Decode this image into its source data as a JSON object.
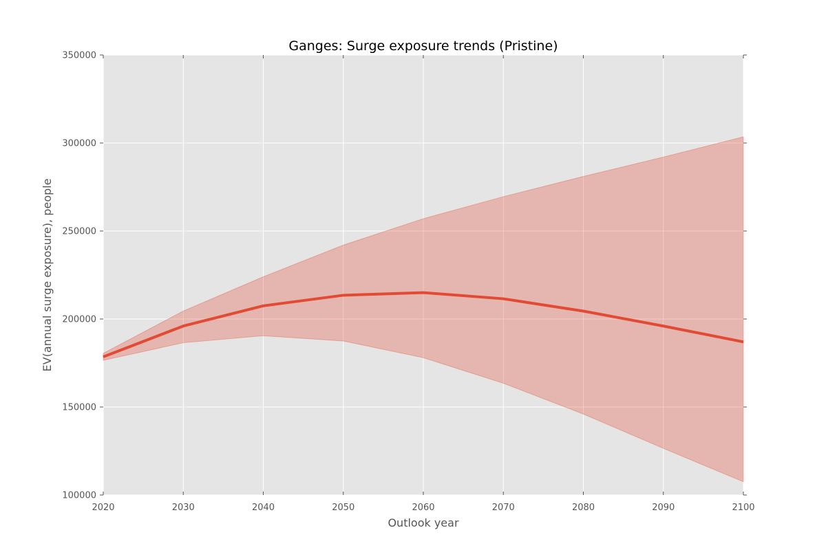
{
  "chart_data": {
    "type": "line",
    "title": "Ganges: Surge exposure trends (Pristine)",
    "xlabel": "Outlook year",
    "ylabel": "EV(annual surge exposure), people",
    "xlim": [
      2020,
      2100
    ],
    "ylim": [
      100000,
      350000
    ],
    "x_ticks": [
      "2020",
      "2030",
      "2040",
      "2050",
      "2060",
      "2070",
      "2080",
      "2090",
      "2100"
    ],
    "y_ticks": [
      "100000",
      "150000",
      "200000",
      "250000",
      "300000",
      "350000"
    ],
    "grid": true,
    "legend": "none",
    "x": [
      2020,
      2030,
      2040,
      2050,
      2060,
      2070,
      2080,
      2090,
      2100
    ],
    "series": [
      {
        "values": [
          178500,
          196000,
          207500,
          213500,
          215000,
          211500,
          204500,
          196000,
          187000
        ],
        "lower": [
          176500,
          186500,
          190500,
          187500,
          178000,
          163500,
          146000,
          126500,
          107500
        ],
        "upper": [
          180500,
          204500,
          224000,
          242000,
          257000,
          269500,
          281000,
          292000,
          303500
        ],
        "color": "#E24A33"
      }
    ],
    "colors": {
      "plot_background": "#E5E5E5",
      "grid": "#FFFFFF",
      "band": "#E24A33",
      "line": "#E24A33",
      "text": "#555555"
    }
  }
}
